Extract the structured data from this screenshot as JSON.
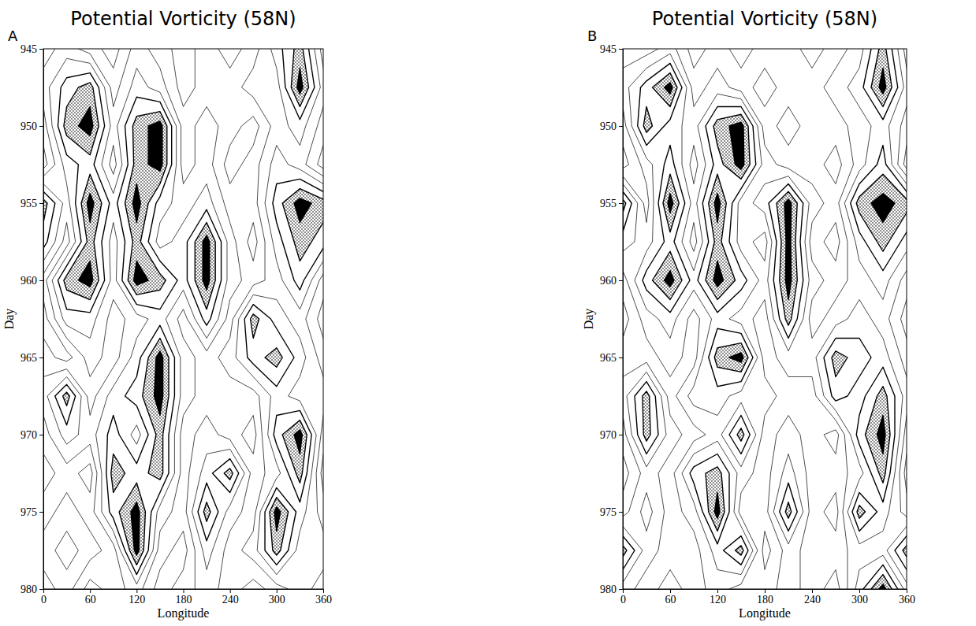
{
  "chart_data": [
    {
      "type": "contour",
      "title": "Potential Vorticity (58N)",
      "panel_label": "A",
      "x_label": "Longitude",
      "y_label": "Day",
      "xlim": [
        0,
        360
      ],
      "xticks": [
        0,
        60,
        120,
        180,
        240,
        300,
        360
      ],
      "ylim": [
        945,
        980
      ],
      "yticks": [
        945,
        950,
        955,
        960,
        965,
        970,
        975,
        980
      ],
      "x": [
        0,
        30,
        60,
        90,
        120,
        150,
        180,
        210,
        240,
        270,
        300,
        330,
        360
      ],
      "y": [
        945,
        947.5,
        950,
        952.5,
        955,
        957.5,
        960,
        962.5,
        965,
        967.5,
        970,
        972.5,
        975,
        977.5,
        980
      ],
      "levels": [
        3.5,
        4.5,
        5.5,
        6.5,
        7.5,
        8.5
      ],
      "values": [
        [
          4,
          5,
          4,
          3,
          5,
          4,
          3,
          4,
          5,
          4,
          6,
          8,
          4
        ],
        [
          5,
          7,
          8,
          4,
          6,
          5,
          3,
          4,
          4,
          5,
          5,
          9,
          5
        ],
        [
          4,
          8,
          9,
          5,
          8,
          9,
          4,
          5,
          4,
          3,
          5,
          6,
          4
        ],
        [
          3,
          6,
          7,
          4,
          8,
          9,
          4,
          5,
          3,
          4,
          6,
          5,
          3
        ],
        [
          8,
          5,
          9,
          6,
          9,
          6,
          5,
          6,
          4,
          4,
          7,
          9,
          8
        ],
        [
          7,
          4,
          8,
          5,
          8,
          5,
          6,
          9,
          5,
          3,
          6,
          8,
          7
        ],
        [
          4,
          8,
          9,
          5,
          9,
          8,
          6,
          9,
          5,
          4,
          5,
          7,
          4
        ],
        [
          3,
          6,
          6,
          4,
          5,
          6,
          4,
          7,
          4,
          8,
          6,
          5,
          3
        ],
        [
          4,
          3,
          5,
          4,
          6,
          9,
          5,
          4,
          5,
          7,
          8,
          6,
          4
        ],
        [
          5,
          8,
          4,
          6,
          7,
          9,
          5,
          4,
          4,
          4,
          6,
          5,
          5
        ],
        [
          4,
          6,
          5,
          7,
          5,
          8,
          4,
          5,
          4,
          3,
          7,
          9,
          4
        ],
        [
          3,
          4,
          3,
          8,
          7,
          8,
          4,
          6,
          8,
          4,
          5,
          8,
          3
        ],
        [
          4,
          5,
          4,
          7,
          9,
          5,
          4,
          8,
          5,
          4,
          9,
          6,
          4
        ],
        [
          5,
          6,
          5,
          4,
          9,
          4,
          3,
          6,
          4,
          5,
          8,
          5,
          5
        ],
        [
          4,
          5,
          3,
          4,
          5,
          3,
          4,
          5,
          4,
          3,
          4,
          5,
          4
        ]
      ]
    },
    {
      "type": "contour",
      "title": "Potential Vorticity (58N)",
      "panel_label": "B",
      "x_label": "Longitude",
      "y_label": "Day",
      "xlim": [
        0,
        360
      ],
      "xticks": [
        0,
        60,
        120,
        180,
        240,
        300,
        360
      ],
      "ylim": [
        945,
        980
      ],
      "yticks": [
        945,
        950,
        955,
        960,
        965,
        970,
        975,
        980
      ],
      "x": [
        0,
        30,
        60,
        90,
        120,
        150,
        180,
        210,
        240,
        270,
        300,
        330,
        360
      ],
      "y": [
        945,
        947.5,
        950,
        952.5,
        955,
        957.5,
        960,
        962.5,
        965,
        967.5,
        970,
        972.5,
        975,
        977.5,
        980
      ],
      "levels": [
        3.5,
        4.5,
        5.5,
        6.5,
        7.5,
        8.5
      ],
      "values": [
        [
          4,
          4,
          5,
          3,
          4,
          5,
          4,
          4,
          5,
          4,
          5,
          8,
          4
        ],
        [
          5,
          7,
          9,
          4,
          5,
          4,
          3,
          4,
          4,
          5,
          6,
          9,
          5
        ],
        [
          4,
          8,
          6,
          5,
          8,
          9,
          4,
          5,
          4,
          4,
          5,
          6,
          4
        ],
        [
          3,
          5,
          7,
          4,
          7,
          9,
          5,
          4,
          4,
          3,
          5,
          7,
          3
        ],
        [
          8,
          4,
          9,
          5,
          9,
          5,
          6,
          9,
          5,
          4,
          8,
          9,
          8
        ],
        [
          6,
          5,
          7,
          4,
          8,
          5,
          4,
          9,
          4,
          3,
          6,
          8,
          6
        ],
        [
          4,
          7,
          9,
          6,
          9,
          7,
          5,
          9,
          5,
          4,
          5,
          6,
          4
        ],
        [
          3,
          5,
          6,
          4,
          6,
          5,
          4,
          8,
          4,
          5,
          6,
          5,
          3
        ],
        [
          4,
          4,
          5,
          4,
          8,
          9,
          4,
          5,
          5,
          8,
          7,
          6,
          4
        ],
        [
          5,
          8,
          4,
          6,
          6,
          5,
          5,
          4,
          4,
          7,
          6,
          8,
          5
        ],
        [
          4,
          8,
          5,
          4,
          5,
          8,
          4,
          5,
          4,
          3,
          7,
          9,
          4
        ],
        [
          3,
          5,
          4,
          7,
          8,
          5,
          4,
          6,
          4,
          4,
          5,
          8,
          3
        ],
        [
          4,
          6,
          4,
          5,
          9,
          4,
          4,
          8,
          4,
          3,
          8,
          6,
          4
        ],
        [
          8,
          5,
          4,
          4,
          6,
          8,
          3,
          5,
          4,
          4,
          5,
          5,
          8
        ],
        [
          5,
          4,
          3,
          4,
          5,
          4,
          4,
          5,
          4,
          3,
          6,
          9,
          5
        ]
      ]
    }
  ]
}
